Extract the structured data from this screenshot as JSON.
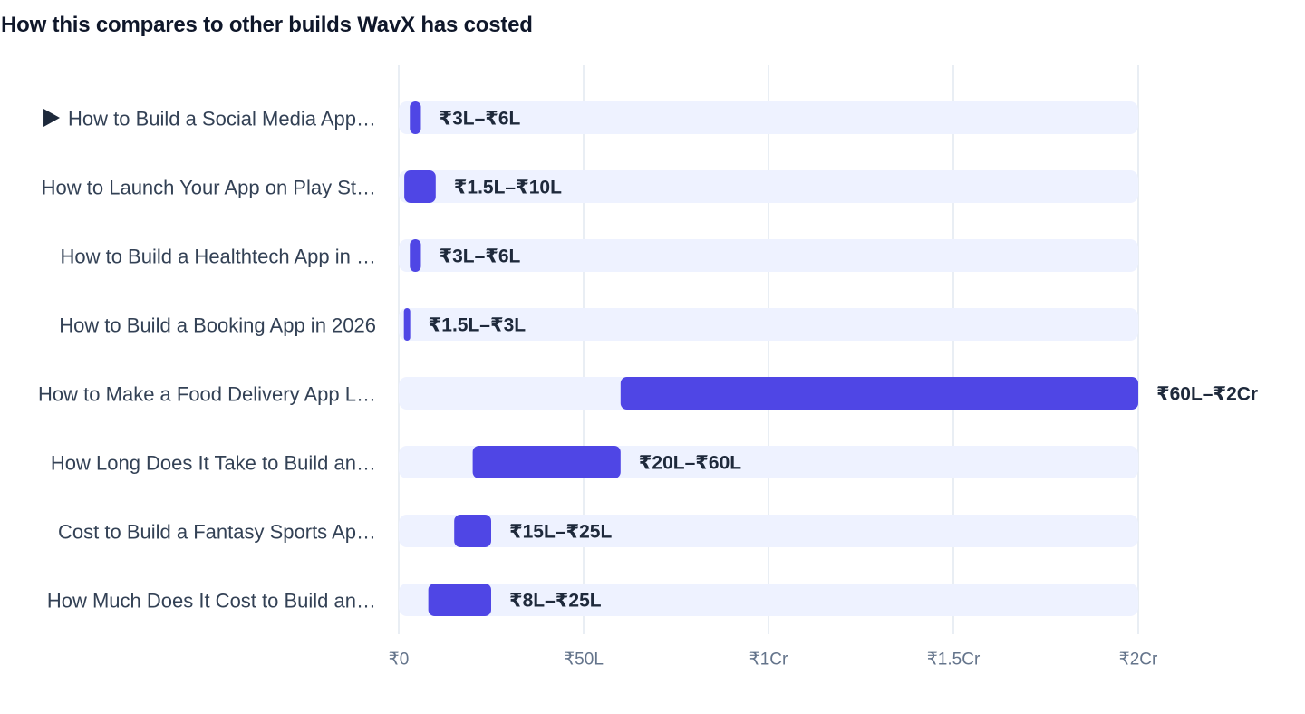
{
  "title": "How this compares to other builds WavX has costed",
  "chart_data": {
    "type": "bar",
    "subtype": "range",
    "orientation": "horizontal",
    "title": "How this compares to other builds WavX has costed",
    "xlabel": "",
    "ylabel": "",
    "unit": "₹ Lakh",
    "xlim": [
      0,
      200
    ],
    "ticks": [
      {
        "value": 0,
        "label": "₹0"
      },
      {
        "value": 50,
        "label": "₹50L"
      },
      {
        "value": 100,
        "label": "₹1Cr"
      },
      {
        "value": 150,
        "label": "₹1.5Cr"
      },
      {
        "value": 200,
        "label": "₹2Cr"
      }
    ],
    "grid": true,
    "legend": "none",
    "colors": {
      "bar": "#4f46e5",
      "track": "#eef2ff",
      "grid": "#e2e8f0",
      "marker": "#1e293b"
    },
    "rows": [
      {
        "label": "How to Build a Social Media App…",
        "current": true,
        "min": 3,
        "max": 6,
        "value_label": "₹3L–₹6L"
      },
      {
        "label": "How to Launch Your App on Play St…",
        "current": false,
        "min": 1.5,
        "max": 10,
        "value_label": "₹1.5L–₹10L"
      },
      {
        "label": "How to Build a Healthtech App in …",
        "current": false,
        "min": 3,
        "max": 6,
        "value_label": "₹3L–₹6L"
      },
      {
        "label": "How to Build a Booking App in 2026",
        "current": false,
        "min": 1.5,
        "max": 3,
        "value_label": "₹1.5L–₹3L"
      },
      {
        "label": "How to Make a Food Delivery App L…",
        "current": false,
        "min": 60,
        "max": 200,
        "value_label": "₹60L–₹2Cr"
      },
      {
        "label": "How Long Does It Take to Build an…",
        "current": false,
        "min": 20,
        "max": 60,
        "value_label": "₹20L–₹60L"
      },
      {
        "label": "Cost to Build a Fantasy Sports Ap…",
        "current": false,
        "min": 15,
        "max": 25,
        "value_label": "₹15L–₹25L"
      },
      {
        "label": "How Much Does It Cost to Build an…",
        "current": false,
        "min": 8,
        "max": 25,
        "value_label": "₹8L–₹25L"
      }
    ]
  }
}
